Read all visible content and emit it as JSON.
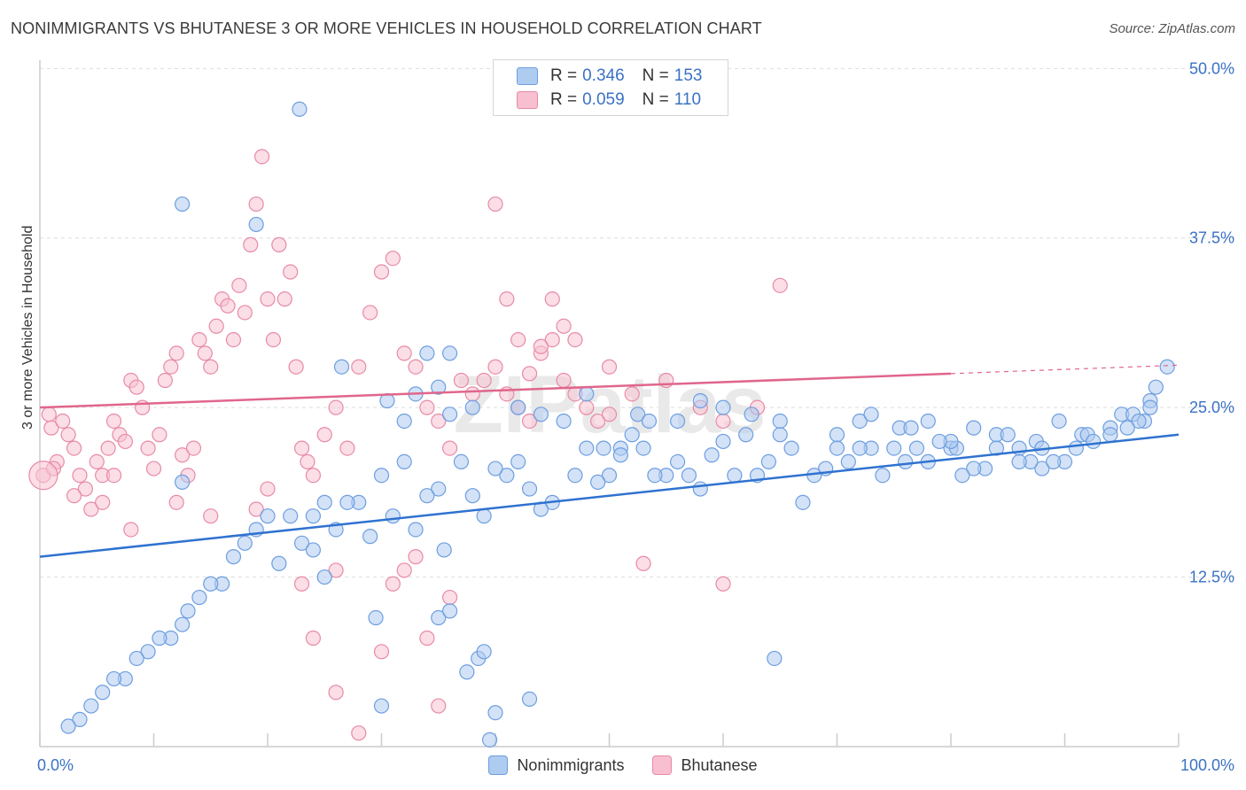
{
  "title": "NONIMMIGRANTS VS BHUTANESE 3 OR MORE VEHICLES IN HOUSEHOLD CORRELATION CHART",
  "source": "Source: ZipAtlas.com",
  "watermark": "ZIPatlas",
  "legend": {
    "r_label": "R =",
    "n_label": "N =",
    "items": [
      {
        "name": "Nonimmigrants",
        "r": "0.346",
        "n": "153",
        "fill": "#aecbf0",
        "stroke": "#6d9ee0"
      },
      {
        "name": "Bhutanese",
        "r": "0.059",
        "n": "110",
        "fill": "#f7bfd0",
        "stroke": "#e88aa7"
      }
    ]
  },
  "colors": {
    "blue_fill": "#aecbf0",
    "blue_stroke": "#6d9ee0",
    "blue_line": "#2f72d0",
    "pink_fill": "#f7c3d2",
    "pink_stroke": "#e88aa7",
    "pink_line": "#e0668c",
    "grid": "#dddddd",
    "tick_label": "#3a72c4"
  },
  "chart_data": {
    "type": "scatter",
    "title": "NONIMMIGRANTS VS BHUTANESE 3 OR MORE VEHICLES IN HOUSEHOLD CORRELATION CHART",
    "xlabel": "",
    "ylabel": "3 or more Vehicles in Household",
    "xlim": [
      0,
      100
    ],
    "ylim": [
      0,
      51
    ],
    "x_tick_labels": [
      "0.0%",
      "100.0%"
    ],
    "y_ticks": [
      12.5,
      25.0,
      37.5,
      50.0
    ],
    "y_tick_labels": [
      "12.5%",
      "25.0%",
      "37.5%",
      "50.0%"
    ],
    "grid": "horizontal dashed",
    "legend_position": "top-center",
    "series": [
      {
        "name": "Nonimmigrants",
        "trend": {
          "x": [
            0,
            100
          ],
          "y": [
            14.0,
            23.0
          ]
        },
        "points": [
          [
            12.5,
            19.5
          ],
          [
            22.8,
            47.0
          ],
          [
            12.5,
            40.0
          ],
          [
            19,
            38.5
          ],
          [
            26.5,
            28
          ],
          [
            36,
            29
          ],
          [
            30.5,
            25.5
          ],
          [
            33,
            26
          ],
          [
            34,
            29
          ],
          [
            35,
            26.5
          ],
          [
            38,
            25
          ],
          [
            32,
            24
          ],
          [
            42,
            25
          ],
          [
            44,
            24.5
          ],
          [
            48,
            26
          ],
          [
            49.5,
            22
          ],
          [
            51,
            22
          ],
          [
            52.5,
            24.5
          ],
          [
            53.5,
            24
          ],
          [
            56,
            24
          ],
          [
            58,
            25.5
          ],
          [
            60,
            25
          ],
          [
            62.5,
            24.5
          ],
          [
            65,
            23
          ],
          [
            70,
            23
          ],
          [
            72,
            24
          ],
          [
            73,
            24.5
          ],
          [
            75.5,
            23.5
          ],
          [
            76.5,
            23.5
          ],
          [
            78,
            24
          ],
          [
            80,
            22
          ],
          [
            82,
            23.5
          ],
          [
            84,
            23
          ],
          [
            86,
            22
          ],
          [
            87.5,
            22.5
          ],
          [
            88,
            20.5
          ],
          [
            89.5,
            24
          ],
          [
            91.5,
            23
          ],
          [
            92,
            23
          ],
          [
            94,
            23.5
          ],
          [
            95,
            24.5
          ],
          [
            96,
            24.5
          ],
          [
            97,
            24
          ],
          [
            97.5,
            25.5
          ],
          [
            98,
            26.5
          ],
          [
            99,
            28
          ],
          [
            97.5,
            25
          ],
          [
            96.5,
            24
          ],
          [
            95.5,
            23.5
          ],
          [
            94,
            23
          ],
          [
            92.5,
            22.5
          ],
          [
            91,
            22
          ],
          [
            90,
            21
          ],
          [
            89,
            21
          ],
          [
            88,
            22
          ],
          [
            87,
            21
          ],
          [
            86,
            21
          ],
          [
            85,
            23
          ],
          [
            84,
            22
          ],
          [
            83,
            20.5
          ],
          [
            82,
            20.5
          ],
          [
            81,
            20
          ],
          [
            80.5,
            22
          ],
          [
            80,
            22.5
          ],
          [
            79,
            22.5
          ],
          [
            78,
            21
          ],
          [
            77,
            22
          ],
          [
            76,
            21
          ],
          [
            75,
            22
          ],
          [
            74,
            20
          ],
          [
            73,
            22
          ],
          [
            72,
            22
          ],
          [
            71,
            21
          ],
          [
            70,
            22
          ],
          [
            69,
            20.5
          ],
          [
            68,
            20
          ],
          [
            67,
            18
          ],
          [
            66,
            22
          ],
          [
            65,
            24
          ],
          [
            64,
            21
          ],
          [
            63,
            20
          ],
          [
            62,
            23
          ],
          [
            61,
            20
          ],
          [
            60,
            22.5
          ],
          [
            59,
            21.5
          ],
          [
            58,
            19
          ],
          [
            57,
            20
          ],
          [
            56,
            21
          ],
          [
            55,
            20
          ],
          [
            54,
            20
          ],
          [
            53,
            22
          ],
          [
            52,
            23
          ],
          [
            51,
            21.5
          ],
          [
            50,
            20
          ],
          [
            49,
            19.5
          ],
          [
            48,
            22
          ],
          [
            47,
            20
          ],
          [
            46,
            24
          ],
          [
            45,
            18
          ],
          [
            44,
            17.5
          ],
          [
            43,
            19
          ],
          [
            42,
            21
          ],
          [
            41,
            20
          ],
          [
            40,
            20.5
          ],
          [
            39,
            17
          ],
          [
            38,
            18.5
          ],
          [
            37,
            21
          ],
          [
            36,
            24.5
          ],
          [
            35,
            19
          ],
          [
            34,
            18.5
          ],
          [
            33,
            16
          ],
          [
            32,
            21
          ],
          [
            31,
            17
          ],
          [
            30,
            20
          ],
          [
            29,
            15.5
          ],
          [
            28,
            18
          ],
          [
            27,
            18
          ],
          [
            26,
            16
          ],
          [
            25,
            18
          ],
          [
            24,
            17
          ],
          [
            23,
            15
          ],
          [
            22,
            17
          ],
          [
            20,
            17
          ],
          [
            19,
            16
          ],
          [
            18,
            15
          ],
          [
            17,
            14
          ],
          [
            16,
            12
          ],
          [
            15,
            12
          ],
          [
            14,
            11
          ],
          [
            13,
            10
          ],
          [
            12.5,
            9
          ],
          [
            11.5,
            8
          ],
          [
            10.5,
            8
          ],
          [
            9.5,
            7
          ],
          [
            8.5,
            6.5
          ],
          [
            7.5,
            5
          ],
          [
            6.5,
            5
          ],
          [
            5.5,
            4
          ],
          [
            4.5,
            3
          ],
          [
            3.5,
            2
          ],
          [
            2.5,
            1.5
          ],
          [
            64.5,
            6.5
          ],
          [
            39.5,
            0.5
          ],
          [
            40,
            2.5
          ],
          [
            43,
            3.5
          ],
          [
            37.5,
            5.5
          ],
          [
            38.5,
            6.5
          ],
          [
            39,
            7
          ],
          [
            30,
            3
          ],
          [
            29.5,
            9.5
          ],
          [
            35,
            9.5
          ],
          [
            36,
            10
          ],
          [
            25,
            12.5
          ],
          [
            21,
            13.5
          ],
          [
            24,
            14.5
          ],
          [
            35.5,
            14.5
          ]
        ]
      },
      {
        "name": "Bhutanese",
        "trend": {
          "x": [
            0,
            80
          ],
          "y": [
            25.0,
            27.5
          ]
        },
        "points": [
          [
            0.3,
            20
          ],
          [
            1,
            23.5
          ],
          [
            1.5,
            21
          ],
          [
            2,
            24
          ],
          [
            3,
            22
          ],
          [
            3.5,
            20
          ],
          [
            4,
            19
          ],
          [
            5,
            21
          ],
          [
            5.5,
            20
          ],
          [
            6,
            22
          ],
          [
            6.5,
            24
          ],
          [
            7,
            23
          ],
          [
            8,
            27
          ],
          [
            8.5,
            26.5
          ],
          [
            9,
            25
          ],
          [
            9.5,
            22
          ],
          [
            10,
            20.5
          ],
          [
            10.5,
            23
          ],
          [
            11,
            27
          ],
          [
            11.5,
            28
          ],
          [
            12,
            29
          ],
          [
            12.5,
            21.5
          ],
          [
            13,
            20
          ],
          [
            13.5,
            22
          ],
          [
            14,
            30
          ],
          [
            14.5,
            29
          ],
          [
            15,
            28
          ],
          [
            15.5,
            31
          ],
          [
            16,
            33
          ],
          [
            16.5,
            32.5
          ],
          [
            17,
            30
          ],
          [
            17.5,
            34
          ],
          [
            18,
            32
          ],
          [
            18.5,
            37
          ],
          [
            19,
            40
          ],
          [
            19.5,
            43.5
          ],
          [
            20,
            33
          ],
          [
            20.5,
            30
          ],
          [
            21,
            37
          ],
          [
            21.5,
            33
          ],
          [
            22,
            35
          ],
          [
            22.5,
            28
          ],
          [
            23,
            22
          ],
          [
            23.5,
            21
          ],
          [
            24,
            20
          ],
          [
            25,
            23
          ],
          [
            26,
            25
          ],
          [
            27,
            22
          ],
          [
            28,
            28
          ],
          [
            29,
            32
          ],
          [
            30,
            35
          ],
          [
            31,
            36
          ],
          [
            32,
            29
          ],
          [
            33,
            28
          ],
          [
            34,
            25
          ],
          [
            35,
            24
          ],
          [
            36,
            22
          ],
          [
            37,
            27
          ],
          [
            38,
            26
          ],
          [
            39,
            27
          ],
          [
            40,
            28
          ],
          [
            41,
            26
          ],
          [
            42,
            25
          ],
          [
            43,
            24
          ],
          [
            44,
            29
          ],
          [
            45,
            30
          ],
          [
            46,
            27
          ],
          [
            47,
            26
          ],
          [
            48,
            25
          ],
          [
            49,
            24
          ],
          [
            50,
            28
          ],
          [
            52,
            26
          ],
          [
            55,
            27
          ],
          [
            58,
            25
          ],
          [
            60,
            24
          ],
          [
            63,
            25
          ],
          [
            65,
            34
          ],
          [
            8,
            16
          ],
          [
            12,
            18
          ],
          [
            15,
            17
          ],
          [
            19,
            17.5
          ],
          [
            20,
            19
          ],
          [
            23,
            12
          ],
          [
            24,
            8
          ],
          [
            26,
            4
          ],
          [
            26,
            13
          ],
          [
            28,
            1
          ],
          [
            30,
            7
          ],
          [
            31,
            12
          ],
          [
            32,
            13
          ],
          [
            33,
            14
          ],
          [
            34,
            8
          ],
          [
            35,
            3
          ],
          [
            36,
            11
          ],
          [
            40,
            40
          ],
          [
            41,
            33
          ],
          [
            42,
            30
          ],
          [
            43,
            27.5
          ],
          [
            44,
            29.5
          ],
          [
            45,
            33
          ],
          [
            46,
            31
          ],
          [
            47,
            30
          ],
          [
            50,
            24.5
          ],
          [
            53,
            13.5
          ],
          [
            60,
            12
          ],
          [
            3,
            18.5
          ],
          [
            4.5,
            17.5
          ],
          [
            2.5,
            23
          ],
          [
            5.5,
            18
          ],
          [
            6.5,
            20
          ],
          [
            7.5,
            22.5
          ],
          [
            1.2,
            20.5
          ],
          [
            0.8,
            24.5
          ]
        ]
      }
    ]
  }
}
